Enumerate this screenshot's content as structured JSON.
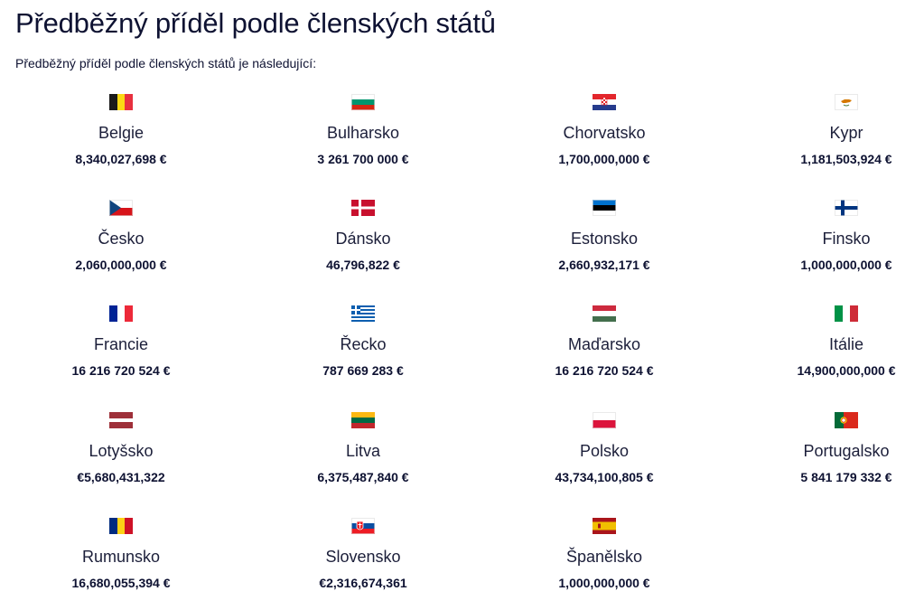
{
  "title": "Předběžný příděl podle členských států",
  "intro": "Předběžný příděl podle členských států je následující:",
  "countries": [
    {
      "name": "Belgie",
      "amount": "8,340,027,698 €",
      "flag_icon": "belgium-flag-icon"
    },
    {
      "name": "Bulharsko",
      "amount": "3 261 700 000 €",
      "flag_icon": "bulgaria-flag-icon"
    },
    {
      "name": "Chorvatsko",
      "amount": "1,700,000,000 €",
      "flag_icon": "croatia-flag-icon"
    },
    {
      "name": "Kypr",
      "amount": "1,181,503,924 €",
      "flag_icon": "cyprus-flag-icon"
    },
    {
      "name": "Česko",
      "amount": "2,060,000,000 €",
      "flag_icon": "czechia-flag-icon"
    },
    {
      "name": "Dánsko",
      "amount": "46,796,822 €",
      "flag_icon": "denmark-flag-icon"
    },
    {
      "name": "Estonsko",
      "amount": "2,660,932,171 €",
      "flag_icon": "estonia-flag-icon"
    },
    {
      "name": "Finsko",
      "amount": "1,000,000,000 €",
      "flag_icon": "finland-flag-icon"
    },
    {
      "name": "Francie",
      "amount": "16 216 720 524 €",
      "flag_icon": "france-flag-icon"
    },
    {
      "name": "Řecko",
      "amount": "787 669 283 €",
      "flag_icon": "greece-flag-icon"
    },
    {
      "name": "Maďarsko",
      "amount": "16 216 720 524 €",
      "flag_icon": "hungary-flag-icon"
    },
    {
      "name": "Itálie",
      "amount": "14,900,000,000 €",
      "flag_icon": "italy-flag-icon"
    },
    {
      "name": "Lotyšsko",
      "amount": "€5,680,431,322",
      "flag_icon": "latvia-flag-icon"
    },
    {
      "name": "Litva",
      "amount": "6,375,487,840 €",
      "flag_icon": "lithuania-flag-icon"
    },
    {
      "name": "Polsko",
      "amount": "43,734,100,805 €",
      "flag_icon": "poland-flag-icon"
    },
    {
      "name": "Portugalsko",
      "amount": "5 841 179 332 €",
      "flag_icon": "portugal-flag-icon"
    },
    {
      "name": "Rumunsko",
      "amount": "16,680,055,394 €",
      "flag_icon": "romania-flag-icon"
    },
    {
      "name": "Slovensko",
      "amount": "€2,316,674,361",
      "flag_icon": "slovakia-flag-icon"
    },
    {
      "name": "Španělsko",
      "amount": "1,000,000,000 €",
      "flag_icon": "spain-flag-icon"
    }
  ]
}
